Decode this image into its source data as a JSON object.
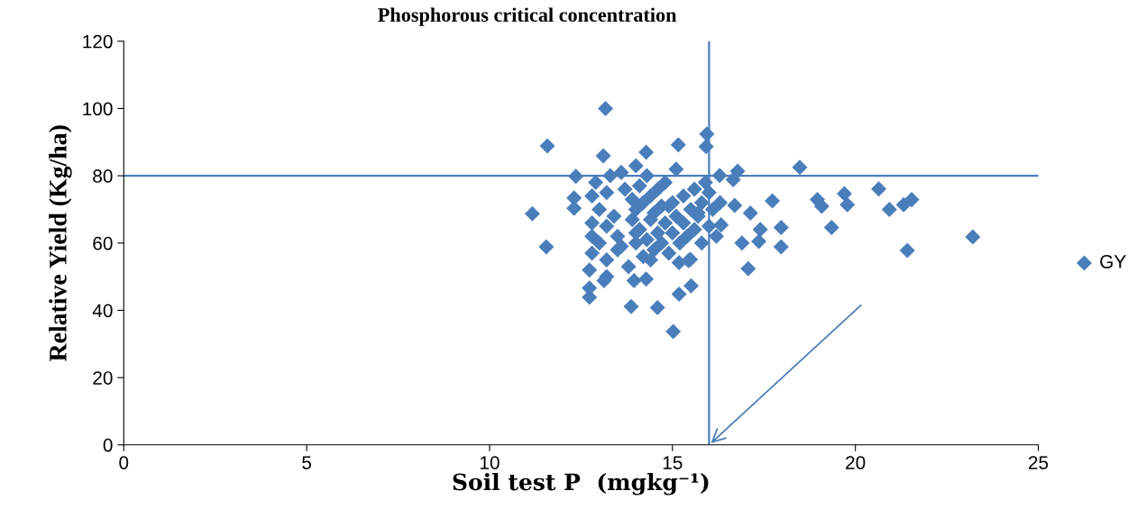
{
  "chart_data": {
    "type": "scatter",
    "title": "Phosphorous critical concentration",
    "xlabel": "Soil test P  (mgkg⁻¹)",
    "ylabel": "Relative Yield (Kg/ha)",
    "xlim": [
      0,
      25
    ],
    "xticks": [
      0,
      5,
      10,
      15,
      20,
      25
    ],
    "ylim": [
      0,
      120
    ],
    "yticks": [
      0,
      20,
      40,
      60,
      80,
      100,
      120
    ],
    "grid": false,
    "legend": "right",
    "marker": "diamond",
    "ref_lines": [
      {
        "axis": "y",
        "value": 80,
        "color": "#4a7ebb"
      },
      {
        "axis": "x",
        "value": 16,
        "color": "#4a7ebb"
      }
    ],
    "series": [
      {
        "name": "GY",
        "color": "#4a7ebb",
        "x": [
          13.17,
          11.58,
          11.17,
          11.55,
          13.11,
          14.28,
          15.16,
          15.94,
          15.92,
          12.36,
          15.02,
          13.87,
          14.59,
          15.18,
          15.51,
          12.73,
          12.73,
          14.28,
          13.95,
          13.13,
          12.73,
          15.44,
          15.18,
          17.07,
          16.9,
          17.13,
          12.31,
          12.31,
          16.7,
          16.78,
          16.29,
          16.66,
          18.48,
          17.73,
          18.96,
          19.08,
          19.7,
          19.78,
          19.35,
          20.64,
          20.93,
          21.32,
          21.54,
          21.42,
          23.21,
          17.97,
          17.97,
          17.4,
          17.36,
          16.33,
          15.49,
          12.8,
          12.8,
          12.8,
          12.8,
          12.9,
          13.0,
          13.0,
          13.2,
          13.2,
          13.2,
          13.3,
          13.4,
          13.5,
          13.5,
          13.6,
          13.7,
          13.8,
          13.9,
          13.9,
          14.0,
          14.0,
          14.0,
          14.1,
          14.1,
          14.2,
          14.2,
          14.3,
          14.3,
          14.4,
          14.4,
          14.5,
          14.5,
          14.6,
          14.6,
          14.7,
          14.7,
          14.8,
          14.8,
          14.9,
          15.0,
          15.0,
          15.1,
          15.1,
          15.2,
          15.3,
          15.3,
          15.4,
          15.5,
          15.6,
          15.6,
          15.7,
          15.8,
          15.8,
          15.9,
          16.0,
          16.0,
          16.1,
          16.2,
          16.3,
          13.6,
          14.0,
          14.4,
          13.2,
          14.9,
          15.7
        ],
        "values": [
          100.0,
          88.9,
          68.7,
          58.9,
          85.9,
          87.0,
          89.2,
          92.4,
          88.7,
          79.8,
          33.7,
          41.1,
          40.8,
          44.8,
          47.3,
          43.9,
          46.6,
          49.3,
          48.8,
          48.8,
          52.0,
          54.8,
          54.2,
          52.4,
          60.0,
          68.9,
          73.4,
          70.3,
          71.2,
          81.4,
          80.1,
          78.8,
          82.5,
          72.5,
          72.9,
          70.9,
          74.7,
          71.4,
          64.6,
          76.1,
          70.0,
          71.4,
          72.9,
          57.8,
          61.8,
          64.6,
          58.9,
          64.0,
          60.5,
          65.4,
          55.1,
          62.0,
          66.0,
          74.0,
          57.0,
          78.0,
          70.0,
          60.0,
          55.0,
          65.0,
          75.0,
          80.0,
          68.0,
          58.0,
          62.0,
          81.0,
          76.0,
          53.0,
          67.0,
          73.0,
          60.0,
          70.0,
          83.0,
          64.0,
          77.0,
          56.0,
          72.0,
          61.0,
          80.0,
          67.0,
          74.0,
          58.0,
          69.0,
          63.0,
          76.0,
          60.0,
          71.0,
          66.0,
          78.0,
          57.0,
          63.0,
          72.0,
          68.0,
          82.0,
          60.0,
          66.0,
          74.0,
          62.0,
          70.0,
          64.0,
          76.0,
          68.0,
          60.0,
          72.0,
          78.0,
          65.0,
          75.0,
          70.0,
          62.0,
          72.0,
          59.0,
          63.0,
          55.0,
          50.0,
          71.0,
          69.0
        ]
      }
    ]
  }
}
